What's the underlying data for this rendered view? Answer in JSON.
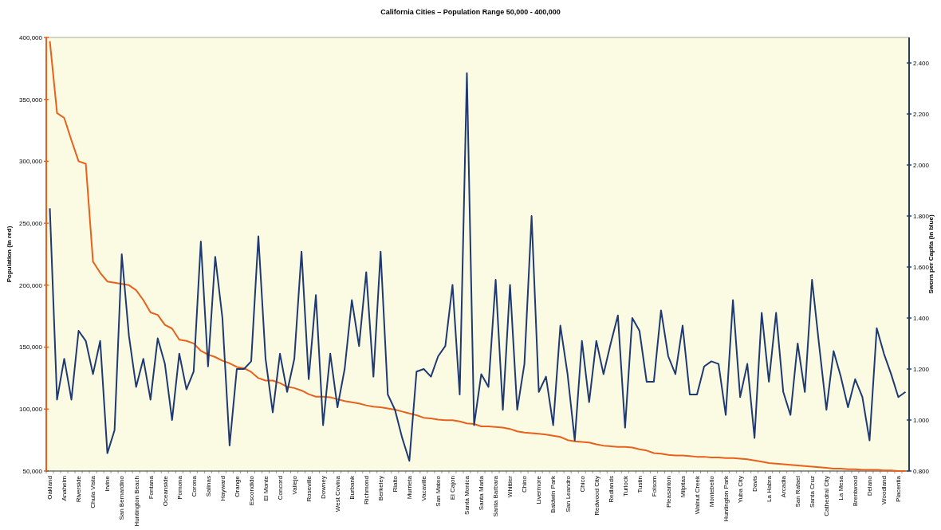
{
  "chart_data": {
    "type": "line",
    "title": "California Cities – Population Range 50,000 - 400,000",
    "ylabel": "Population (in red)",
    "y2label": "Sworn per Capita (in blue)",
    "categories": [
      "Oakland",
      null,
      "Anaheim",
      null,
      "Riverside",
      null,
      "Chula Vista",
      null,
      "Irvine",
      null,
      "San Bernardino",
      null,
      "Huntington Beach",
      null,
      "Fontana",
      null,
      "Oceanside",
      null,
      "Pomona",
      null,
      "Corona",
      null,
      "Salinas",
      null,
      "Hayward",
      null,
      "Orange",
      null,
      "Escondido",
      null,
      "El Monte",
      null,
      "Concord",
      null,
      "Vallejo",
      null,
      "Roseville",
      null,
      "Downey",
      null,
      "West Covina",
      null,
      "Burbank",
      null,
      "Richmond",
      null,
      "Berkeley",
      null,
      "Rialto",
      null,
      "Murrieta",
      null,
      "Vacaville",
      null,
      "San Mateo",
      null,
      "El Cajon",
      null,
      "Santa Monica",
      null,
      "Santa Maria",
      null,
      "Santa Barbara",
      null,
      "Whittier",
      null,
      "Chino",
      null,
      "Livermore",
      null,
      "Baldwin Park",
      null,
      "San Leandro",
      null,
      "Chico",
      null,
      "Redwood City",
      null,
      "Redlands",
      null,
      "Turlock",
      null,
      "Tustin",
      null,
      "Folsom",
      null,
      "Pleasanton",
      null,
      "Milpitas",
      null,
      "Walnut Creek",
      null,
      "Montebello",
      null,
      "Huntington Park",
      null,
      "Yuba City",
      null,
      "Davis",
      null,
      "La Habra",
      null,
      "Arcadia",
      null,
      "San Rafael",
      null,
      "Santa Cruz",
      null,
      "Cathedral City",
      null,
      "La Mesa",
      null,
      "Brentwood",
      null,
      "Delano",
      null,
      "Woodland",
      null,
      "Placentia",
      null
    ],
    "series": [
      {
        "color": "#e8601c",
        "values": [
          397000,
          339000,
          335000,
          317000,
          300000,
          298000,
          219000,
          210000,
          203000,
          202000,
          201000,
          200000,
          196000,
          188000,
          178000,
          176000,
          168000,
          165000,
          156000,
          155000,
          153000,
          147000,
          144000,
          142000,
          139000,
          137000,
          134000,
          133000,
          130000,
          125000,
          123000,
          123000,
          121000,
          118000,
          117000,
          115000,
          112000,
          110000,
          110000,
          109500,
          108000,
          106500,
          105500,
          104500,
          103000,
          102000,
          101500,
          100500,
          99500,
          98000,
          96500,
          95000,
          93000,
          92500,
          91500,
          91000,
          91000,
          90000,
          88500,
          88000,
          86000,
          86000,
          85500,
          85000,
          84000,
          82000,
          81000,
          80500,
          80000,
          79500,
          78500,
          77500,
          75000,
          74000,
          73500,
          73000,
          71500,
          70500,
          70000,
          69500,
          69500,
          69000,
          67500,
          66500,
          64500,
          64000,
          63000,
          62500,
          62500,
          62000,
          61500,
          61500,
          61000,
          61000,
          60500,
          60500,
          60000,
          59500,
          58500,
          57500,
          56500,
          56000,
          55500,
          55000,
          54500,
          54000,
          53500,
          53000,
          52500,
          52000,
          52000,
          51500,
          51500,
          51000,
          51000,
          51000,
          50500,
          50500,
          50000,
          50000
        ]
      },
      {
        "color": "#1f3a73",
        "axis": "y2",
        "values": [
          1.83,
          1.08,
          1.24,
          1.08,
          1.35,
          1.31,
          1.18,
          1.31,
          0.87,
          0.96,
          1.65,
          1.33,
          1.13,
          1.24,
          1.08,
          1.32,
          1.22,
          1.0,
          1.26,
          1.12,
          1.19,
          1.7,
          1.21,
          1.64,
          1.4,
          0.9,
          1.2,
          1.2,
          1.23,
          1.72,
          1.24,
          1.03,
          1.26,
          1.11,
          1.24,
          1.66,
          1.16,
          1.49,
          0.98,
          1.26,
          1.05,
          1.2,
          1.47,
          1.29,
          1.58,
          1.17,
          1.66,
          1.1,
          1.04,
          0.93,
          0.84,
          1.19,
          1.2,
          1.17,
          1.25,
          1.29,
          1.53,
          1.1,
          2.36,
          0.98,
          1.18,
          1.13,
          1.55,
          1.04,
          1.53,
          1.04,
          1.22,
          1.8,
          1.11,
          1.17,
          0.98,
          1.37,
          1.18,
          0.92,
          1.31,
          1.07,
          1.31,
          1.18,
          1.3,
          1.41,
          0.97,
          1.4,
          1.35,
          1.15,
          1.15,
          1.43,
          1.25,
          1.18,
          1.37,
          1.1,
          1.1,
          1.21,
          1.23,
          1.22,
          1.02,
          1.47,
          1.09,
          1.22,
          0.93,
          1.42,
          1.15,
          1.42,
          1.11,
          1.02,
          1.3,
          1.11,
          1.55,
          1.29,
          1.04,
          1.27,
          1.17,
          1.05,
          1.16,
          1.09,
          0.92,
          1.36,
          1.26,
          1.18,
          1.09,
          1.11
        ]
      }
    ],
    "ylim": [
      50000,
      400000
    ],
    "yticks": [
      {
        "value": 50000,
        "label": "50,000"
      },
      {
        "value": 100000,
        "label": "100,000"
      },
      {
        "value": 150000,
        "label": "150,000"
      },
      {
        "value": 200000,
        "label": "200,000"
      },
      {
        "value": 250000,
        "label": "250,000"
      },
      {
        "value": 300000,
        "label": "300,000"
      },
      {
        "value": 350000,
        "label": "350,000"
      },
      {
        "value": 400000,
        "label": "400,000"
      }
    ],
    "y2lim": [
      0.8,
      2.5
    ],
    "y2ticks": [
      {
        "value": 0.8,
        "label": "0.800"
      },
      {
        "value": 1.0,
        "label": "1.000"
      },
      {
        "value": 1.2,
        "label": "1.200"
      },
      {
        "value": 1.4,
        "label": "1.400"
      },
      {
        "value": 1.6,
        "label": "1.600"
      },
      {
        "value": 1.8,
        "label": "1.800"
      },
      {
        "value": 2.0,
        "label": "2.000"
      },
      {
        "value": 2.2,
        "label": "2.200"
      },
      {
        "value": 2.4,
        "label": "2.400"
      }
    ],
    "marker": "none",
    "line_style": "solid"
  }
}
